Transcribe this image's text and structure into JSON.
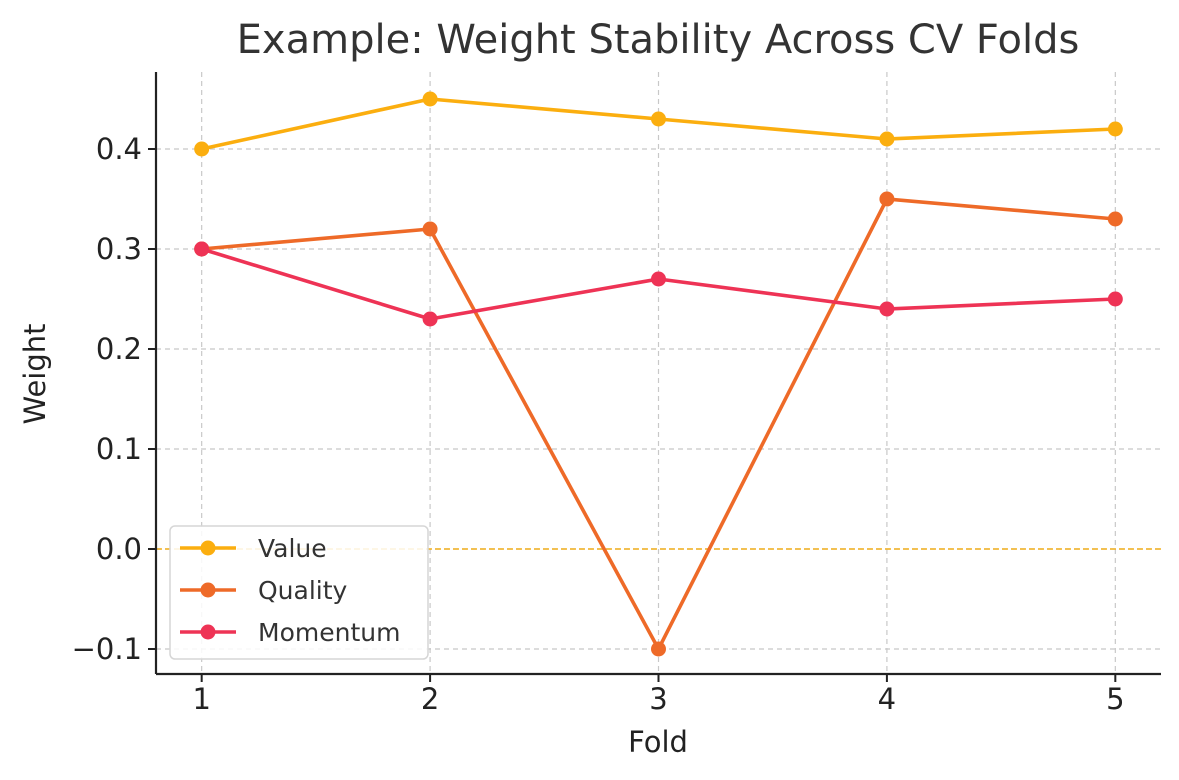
{
  "chart_data": {
    "type": "line",
    "title": "Example: Weight Stability Across CV Folds",
    "xlabel": "Fold",
    "ylabel": "Weight",
    "x": [
      1,
      2,
      3,
      4,
      5
    ],
    "x_tick_labels": [
      "1",
      "2",
      "3",
      "4",
      "5"
    ],
    "xlim": [
      0.8,
      5.2
    ],
    "ylim": [
      -0.125,
      0.477
    ],
    "y_ticks": [
      -0.1,
      0.0,
      0.1,
      0.2,
      0.3,
      0.4
    ],
    "y_tick_labels": [
      "−0.1",
      "0.0",
      "0.1",
      "0.2",
      "0.3",
      "0.4"
    ],
    "grid": true,
    "legend_position": "lower-left",
    "reference_line": {
      "y": 0.0,
      "color": "#F2B01E",
      "style": "dashed"
    },
    "series": [
      {
        "name": "Value",
        "values": [
          0.4,
          0.45,
          0.43,
          0.41,
          0.42
        ],
        "color": "#FBAE0F"
      },
      {
        "name": "Quality",
        "values": [
          0.3,
          0.32,
          -0.1,
          0.35,
          0.33
        ],
        "color": "#EE6A28"
      },
      {
        "name": "Momentum",
        "values": [
          0.3,
          0.23,
          0.27,
          0.24,
          0.25
        ],
        "color": "#EE3355"
      }
    ]
  }
}
